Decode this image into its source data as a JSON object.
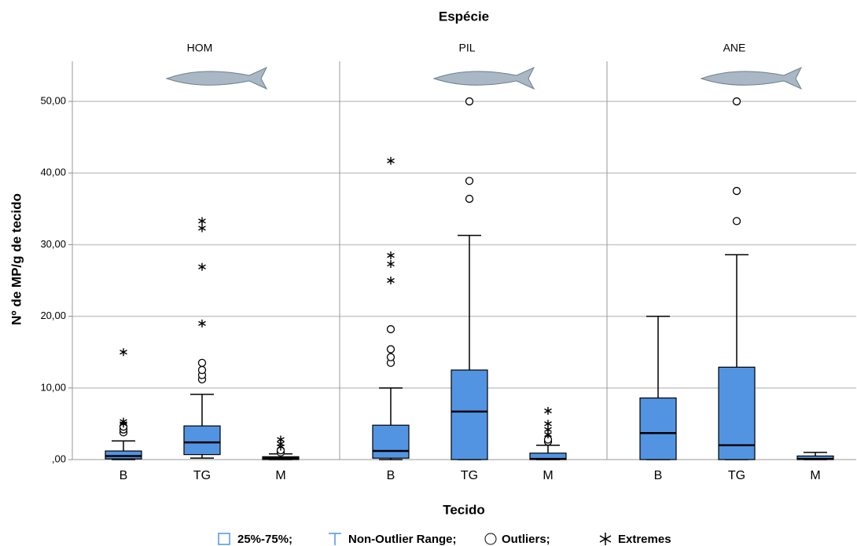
{
  "chart_data": {
    "type": "box",
    "title": "Espécie",
    "xlabel": "Tecido",
    "ylabel": "Nº de MP/g de tecido",
    "ylim": [
      0,
      55.6
    ],
    "yticks": [
      {
        "value": 0,
        "label": ",00"
      },
      {
        "value": 10,
        "label": "10,00"
      },
      {
        "value": 20,
        "label": "20,00"
      },
      {
        "value": 30,
        "label": "30,00"
      },
      {
        "value": 40,
        "label": "40,00"
      },
      {
        "value": 50,
        "label": "50,00"
      }
    ],
    "grid": true,
    "color": "#5294e2",
    "legend": {
      "box": "25%-75%;",
      "range": "Non-Outlier Range;",
      "outliers": "Outliers;",
      "extremes": "Extremes"
    },
    "panels": [
      {
        "name": "HOM",
        "categories": [
          "B",
          "TG",
          "M"
        ],
        "boxes": [
          {
            "low": 0,
            "q1": 0.1,
            "median": 0.5,
            "q3": 1.2,
            "high": 2.6,
            "outliers": [
              3.8,
              4.2,
              4.6
            ],
            "extremes": [
              5.0,
              5.3,
              15.0
            ]
          },
          {
            "low": 0.2,
            "q1": 0.7,
            "median": 2.4,
            "q3": 4.7,
            "high": 9.1,
            "outliers": [
              11.2,
              11.8,
              12.5,
              13.5
            ],
            "extremes": [
              19.0,
              26.9,
              32.3,
              33.3
            ]
          },
          {
            "low": 0,
            "q1": 0,
            "median": 0.2,
            "q3": 0.4,
            "high": 0.8,
            "outliers": [
              1.0,
              1.3
            ],
            "extremes": [
              1.8,
              2.2,
              2.8
            ]
          }
        ]
      },
      {
        "name": "PIL",
        "categories": [
          "B",
          "TG",
          "M"
        ],
        "boxes": [
          {
            "low": 0,
            "q1": 0.2,
            "median": 1.2,
            "q3": 4.8,
            "high": 10.0,
            "outliers": [
              13.5,
              14.3,
              15.4,
              18.2
            ],
            "extremes": [
              25.0,
              27.3,
              28.5,
              41.7
            ]
          },
          {
            "low": 0,
            "q1": 0,
            "median": 6.7,
            "q3": 12.5,
            "high": 31.3,
            "outliers": [
              36.4,
              38.9,
              50.0
            ],
            "extremes": []
          },
          {
            "low": 0,
            "q1": 0,
            "median": 0.1,
            "q3": 0.9,
            "high": 2.0,
            "outliers": [
              2.5,
              2.8
            ],
            "extremes": [
              3.5,
              4.2,
              5.0,
              6.8
            ]
          }
        ]
      },
      {
        "name": "ANE",
        "categories": [
          "B",
          "TG",
          "M"
        ],
        "boxes": [
          {
            "low": 0,
            "q1": 0,
            "median": 3.7,
            "q3": 8.6,
            "high": 20.0,
            "outliers": [],
            "extremes": []
          },
          {
            "low": 0,
            "q1": 0,
            "median": 2.0,
            "q3": 12.9,
            "high": 28.6,
            "outliers": [
              33.3,
              37.5,
              50.0
            ],
            "extremes": []
          },
          {
            "low": 0,
            "q1": 0,
            "median": 0.1,
            "q3": 0.5,
            "high": 1.0,
            "outliers": [],
            "extremes": []
          }
        ]
      }
    ]
  }
}
